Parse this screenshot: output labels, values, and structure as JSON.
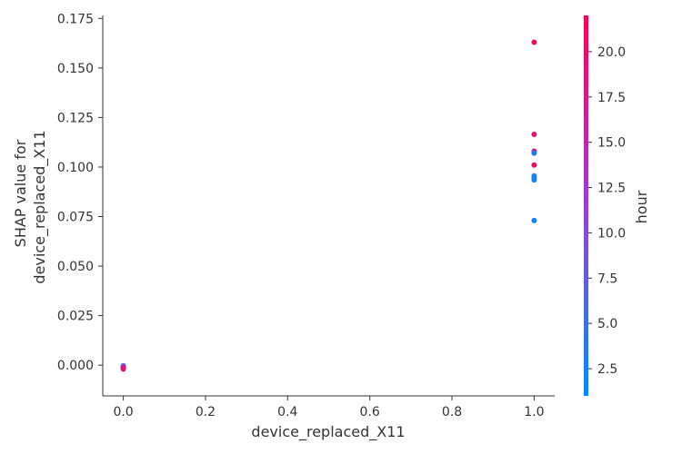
{
  "chart_data": {
    "type": "scatter",
    "title": "",
    "xlabel": "device_replaced_X11",
    "ylabel_lines": [
      "SHAP value for",
      "device_replaced_X11"
    ],
    "xlim": [
      -0.05,
      1.05
    ],
    "ylim": [
      -0.0155,
      0.1765
    ],
    "xticks": [
      0.0,
      0.2,
      0.4,
      0.6,
      0.8,
      1.0
    ],
    "xtick_labels": [
      "0.0",
      "0.2",
      "0.4",
      "0.6",
      "0.8",
      "1.0"
    ],
    "yticks": [
      0.0,
      0.025,
      0.05,
      0.075,
      0.1,
      0.125,
      0.15,
      0.175
    ],
    "ytick_labels": [
      "0.000",
      "0.025",
      "0.050",
      "0.075",
      "0.100",
      "0.125",
      "0.150",
      "0.175"
    ],
    "grid": false,
    "colorbar": {
      "label": "hour",
      "range": [
        1,
        22
      ],
      "ticks": [
        2.5,
        5.0,
        7.5,
        10.0,
        12.5,
        15.0,
        17.5,
        20.0
      ],
      "tick_labels": [
        "2.5",
        "5.0",
        "7.5",
        "10.0",
        "12.5",
        "15.0",
        "17.5",
        "20.0"
      ],
      "colormap": [
        "#008bfb",
        "#ff0052"
      ]
    },
    "points": [
      {
        "x": 1.0,
        "y": 0.163,
        "hour": 21
      },
      {
        "x": 1.0,
        "y": 0.1165,
        "hour": 19
      },
      {
        "x": 1.0,
        "y": 0.108,
        "hour": 18
      },
      {
        "x": 1.0,
        "y": 0.107,
        "hour": 3
      },
      {
        "x": 1.0,
        "y": 0.101,
        "hour": 20
      },
      {
        "x": 1.0,
        "y": 0.0955,
        "hour": 3
      },
      {
        "x": 1.0,
        "y": 0.0945,
        "hour": 2
      },
      {
        "x": 1.0,
        "y": 0.0935,
        "hour": 2
      },
      {
        "x": 1.0,
        "y": 0.073,
        "hour": 1.5
      },
      {
        "x": 0.0,
        "y": -0.0003,
        "hour": 6
      },
      {
        "x": 0.0,
        "y": -0.0008,
        "hour": 9
      },
      {
        "x": 0.0,
        "y": -0.0012,
        "hour": 14
      },
      {
        "x": 0.0,
        "y": -0.0016,
        "hour": 21
      },
      {
        "x": 0.0,
        "y": -0.002,
        "hour": 18
      }
    ]
  }
}
